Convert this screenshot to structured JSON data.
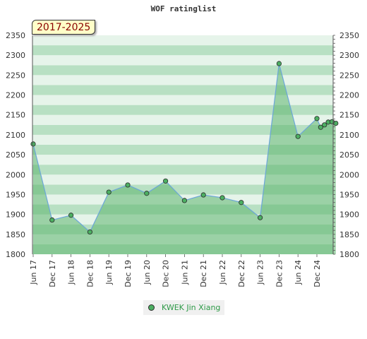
{
  "title": "WOF ratinglist",
  "period_label": "2017-2025",
  "legend": {
    "label": "KWEK Jin Xiang"
  },
  "colors": {
    "line": "#6ca6d9",
    "marker": "#4caf62",
    "fill": "#5cb46e",
    "band_light": "#e6f4ea",
    "band_dark": "#b8e0c3"
  },
  "chart_data": {
    "type": "line",
    "title": "WOF ratinglist",
    "xlabel": "",
    "ylabel": "",
    "ylim": [
      1800,
      2350
    ],
    "yticks": [
      1800,
      1850,
      1900,
      1950,
      2000,
      2050,
      2100,
      2150,
      2200,
      2250,
      2300,
      2350
    ],
    "categories": [
      "Jun 17",
      "Dec 17",
      "Jun 18",
      "Dec 18",
      "Jun 19",
      "Dec 19",
      "Jun 20",
      "Dec 20",
      "Jun 21",
      "Dec 21",
      "Jun 22",
      "Dec 22",
      "Jun 23",
      "Dec 23",
      "Jun 24",
      "Dec 24"
    ],
    "series": [
      {
        "name": "KWEK Jin Xiang",
        "points": [
          {
            "x": 0,
            "y": 2077
          },
          {
            "x": 1,
            "y": 1886
          },
          {
            "x": 2,
            "y": 1898
          },
          {
            "x": 3,
            "y": 1856
          },
          {
            "x": 4,
            "y": 1956
          },
          {
            "x": 5,
            "y": 1974
          },
          {
            "x": 6,
            "y": 1953
          },
          {
            "x": 7,
            "y": 1984
          },
          {
            "x": 8,
            "y": 1935
          },
          {
            "x": 9,
            "y": 1949
          },
          {
            "x": 10,
            "y": 1942
          },
          {
            "x": 11,
            "y": 1930
          },
          {
            "x": 12,
            "y": 1892
          },
          {
            "x": 13,
            "y": 2279
          },
          {
            "x": 14,
            "y": 2096
          },
          {
            "x": 15,
            "y": 2141
          },
          {
            "x": 15.2,
            "y": 2119
          },
          {
            "x": 15.4,
            "y": 2125
          },
          {
            "x": 15.6,
            "y": 2132
          },
          {
            "x": 15.8,
            "y": 2133
          },
          {
            "x": 16.0,
            "y": 2129
          }
        ]
      }
    ],
    "grid": true,
    "legend_position": "bottom"
  }
}
